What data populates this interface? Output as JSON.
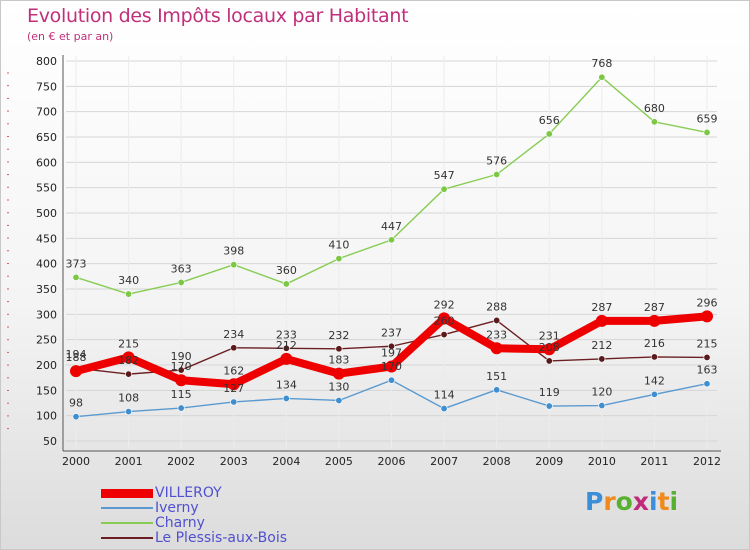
{
  "header": {
    "title": "Evolution des Impôts locaux par Habitant",
    "subtitle": "(en € et par an)"
  },
  "brand": {
    "letters": [
      "P",
      "r",
      "o",
      "x",
      "i",
      "t",
      "i"
    ],
    "colors": [
      "#3a8fd8",
      "#f08a1c",
      "#58b030",
      "#c02a7a",
      "#3a8fd8",
      "#f08a1c",
      "#58b030"
    ]
  },
  "chart_data": {
    "type": "line",
    "title": "Evolution des Impôts locaux par Habitant",
    "ylabel": "(en € et par an)",
    "xlabel": "",
    "x": [
      "2000",
      "2001",
      "2002",
      "2003",
      "2004",
      "2005",
      "2006",
      "2007",
      "2008",
      "2009",
      "2010",
      "2011",
      "2012"
    ],
    "ylim": [
      50,
      800
    ],
    "yticks": [
      50,
      100,
      150,
      200,
      250,
      300,
      350,
      400,
      450,
      500,
      550,
      600,
      650,
      700,
      750,
      800
    ],
    "grid": "horizontal",
    "series": [
      {
        "name": "VILLEROY",
        "color": "#ee0000",
        "values": [
          188,
          215,
          170,
          162,
          212,
          183,
          197,
          292,
          233,
          231,
          287,
          287,
          296
        ],
        "labels": [
          "188",
          "215",
          "170",
          "162",
          "212",
          "183",
          "197",
          "292",
          "233",
          "231",
          "287",
          "287",
          "296"
        ]
      },
      {
        "name": "Iverny",
        "color": "#5a9ad0",
        "values": [
          98,
          108,
          115,
          127,
          134,
          130,
          170,
          114,
          151,
          119,
          120,
          142,
          163
        ],
        "labels": [
          "98",
          "108",
          "115",
          "127",
          "134",
          "130",
          "170",
          "114",
          "151",
          "119",
          "120",
          "142",
          "163"
        ]
      },
      {
        "name": "Charny",
        "color": "#88cc55",
        "values": [
          373,
          340,
          363,
          398,
          360,
          410,
          447,
          547,
          576,
          656,
          768,
          680,
          659
        ],
        "labels": [
          "373",
          "340",
          "363",
          "398",
          "360",
          "410",
          "447",
          "547",
          "576",
          "656",
          "768",
          "680",
          "659"
        ]
      },
      {
        "name": "Le Plessis-aux-Bois",
        "color": "#6b1f22",
        "values": [
          194,
          182,
          190,
          234,
          233,
          232,
          237,
          260,
          288,
          208,
          212,
          216,
          215
        ],
        "labels": [
          "194",
          "182",
          "190",
          "234",
          "233",
          "232",
          "237",
          "260",
          "288",
          "208",
          "212",
          "216",
          "215"
        ]
      }
    ]
  }
}
